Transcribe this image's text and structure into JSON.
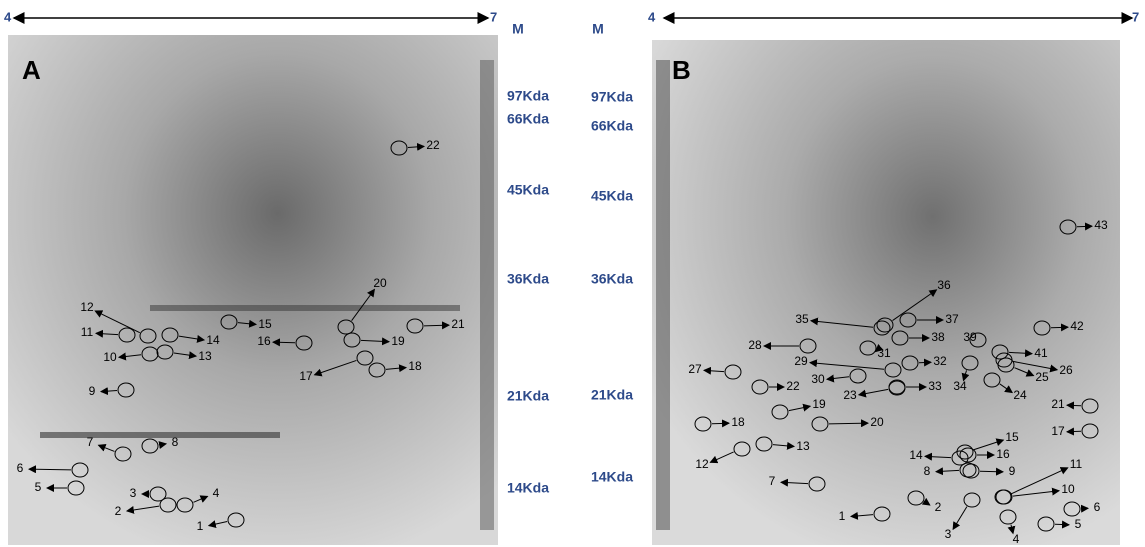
{
  "panels": [
    {
      "label": "A",
      "ph_start": "4",
      "ph_end": "7",
      "marker_lane": "M",
      "mw_markers": [
        "97Kda",
        "66Kda",
        "45Kda",
        "36Kda",
        "21Kda",
        "14Kda"
      ],
      "spots": [
        "1",
        "2",
        "3",
        "4",
        "5",
        "6",
        "7",
        "8",
        "9",
        "10",
        "11",
        "12",
        "13",
        "14",
        "15",
        "16",
        "17",
        "18",
        "19",
        "20",
        "21",
        "22"
      ]
    },
    {
      "label": "B",
      "ph_start": "4",
      "ph_end": "7",
      "marker_lane": "M",
      "mw_markers": [
        "97Kda",
        "66Kda",
        "45Kda",
        "36Kda",
        "21Kda",
        "14Kda"
      ],
      "spots": [
        "1",
        "2",
        "3",
        "4",
        "5",
        "6",
        "7",
        "8",
        "9",
        "10",
        "11",
        "12",
        "13",
        "14",
        "15",
        "16",
        "17",
        "18",
        "19",
        "20",
        "21",
        "22",
        "23",
        "24",
        "25",
        "26",
        "27",
        "28",
        "29",
        "30",
        "31",
        "32",
        "33",
        "34",
        "35",
        "36",
        "37",
        "38",
        "39",
        "41",
        "42",
        "43"
      ]
    }
  ]
}
